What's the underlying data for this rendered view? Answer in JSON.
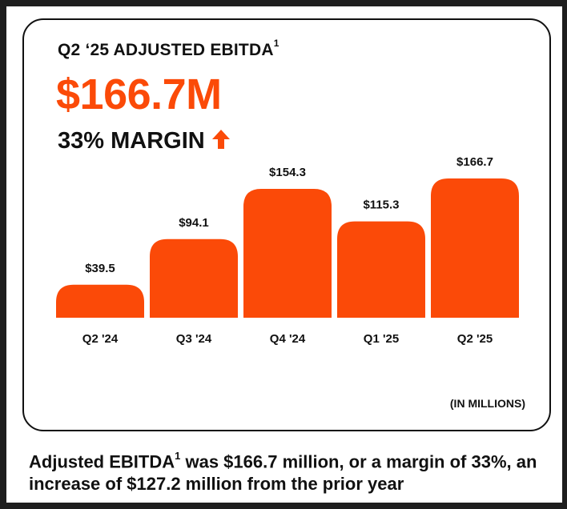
{
  "header": {
    "title": "Q2 ‘25 ADJUSTED EBITDA",
    "title_superscript": "1",
    "headline_value": "$166.7M",
    "margin_label": "33% MARGIN",
    "margin_icon": "arrow-up-icon"
  },
  "units_label": "(IN MILLIONS)",
  "caption": {
    "prefix": "Adjusted EBITDA",
    "superscript": "1",
    "suffix": " was $166.7 million, or a margin of 33%, an increase of $127.2 million from the prior year"
  },
  "colors": {
    "accent": "#fb4a08",
    "text": "#111111",
    "background": "#ffffff",
    "frame": "#1e1e1e"
  },
  "chart_data": {
    "type": "bar",
    "title": "",
    "xlabel": "",
    "ylabel": "",
    "categories": [
      "Q2 '24",
      "Q3 '24",
      "Q4 '24",
      "Q1 '25",
      "Q2 '25"
    ],
    "values": [
      39.5,
      94.1,
      154.3,
      115.3,
      166.7
    ],
    "data_labels": [
      "$39.5",
      "$94.1",
      "$154.3",
      "$115.3",
      "$166.7"
    ],
    "ylim": [
      0,
      166.7
    ],
    "grid": false,
    "legend": "none"
  }
}
